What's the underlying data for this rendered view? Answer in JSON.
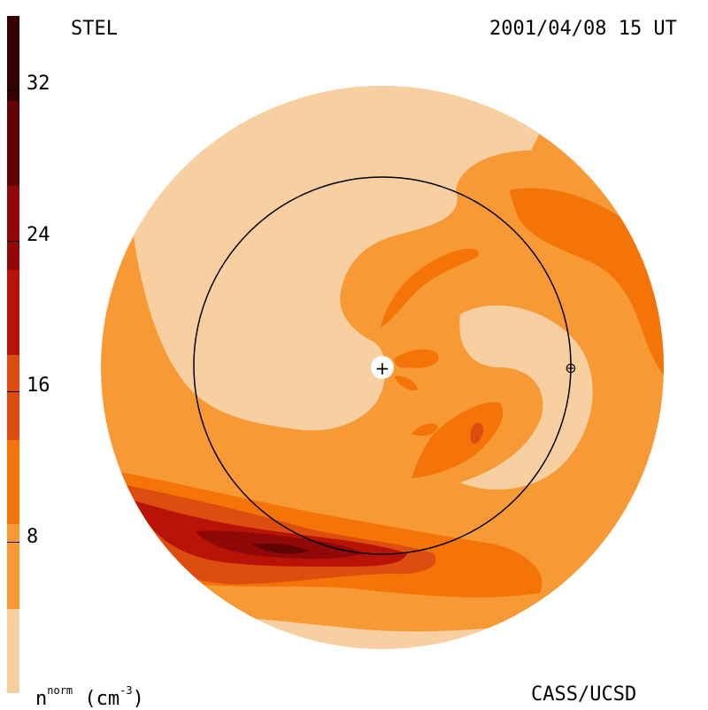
{
  "header": {
    "observatory": "STEL",
    "datetime": "2001/04/08 15 UT"
  },
  "footer": {
    "variable_base": "n",
    "variable_sup": "norm",
    "unit_open": " (cm",
    "unit_sup": "-3",
    "unit_close": ")",
    "credit": "CASS/UCSD"
  },
  "colorbar": {
    "tick_labels": [
      "32",
      "24",
      "16",
      "8"
    ],
    "levels": [
      {
        "color": "#f7cfa0"
      },
      {
        "color": "#f79a35"
      },
      {
        "color": "#f57407"
      },
      {
        "color": "#dd4d0f"
      },
      {
        "color": "#b81306"
      },
      {
        "color": "#900808"
      },
      {
        "color": "#620303"
      },
      {
        "color": "#330000"
      }
    ]
  },
  "map": {
    "sun_marker": "+",
    "earth_marker": "⊕",
    "colors": {
      "level1": "#f7cfa0",
      "level2": "#f79a35",
      "level3": "#f57407",
      "level4": "#dd4d0f",
      "level5": "#b81306",
      "level6": "#900808",
      "level7": "#620303",
      "orbit": "#000000"
    }
  }
}
